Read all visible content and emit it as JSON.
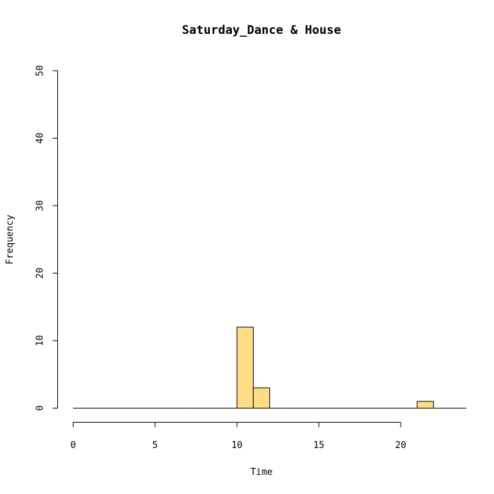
{
  "chart_data": {
    "type": "bar",
    "title": "Saturday_Dance & House",
    "xlabel": "Time",
    "ylabel": "Frequency",
    "bar_color": "#FFDD88",
    "bin_width": 1,
    "bins": [
      0,
      1,
      2,
      3,
      4,
      5,
      6,
      7,
      8,
      9,
      10,
      11,
      12,
      13,
      14,
      15,
      16,
      17,
      18,
      19,
      20,
      21,
      22,
      23
    ],
    "values": [
      0,
      0,
      0,
      0,
      0,
      0,
      0,
      0,
      0,
      0,
      12,
      3,
      0,
      0,
      0,
      0,
      0,
      0,
      0,
      0,
      0,
      1,
      0,
      0
    ],
    "xlim": [
      0,
      24
    ],
    "ylim": [
      0,
      50
    ],
    "xticks": [
      0,
      5,
      10,
      15,
      20
    ],
    "yticks": [
      0,
      10,
      20,
      30,
      40,
      50
    ],
    "grid": false
  }
}
